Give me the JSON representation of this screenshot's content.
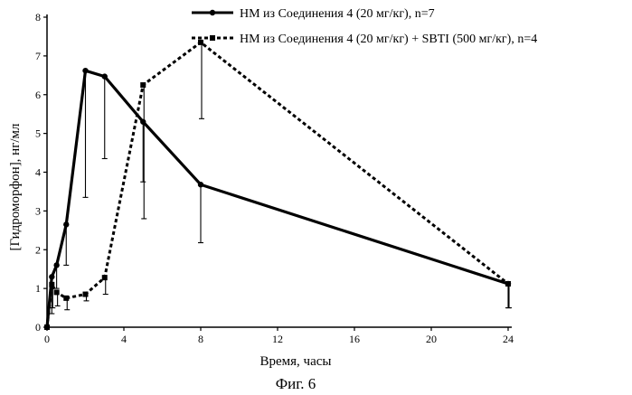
{
  "figure_caption": "Фиг. 6",
  "chart_data": {
    "type": "line",
    "title": "",
    "xlabel": "Время, часы",
    "ylabel": "[Гидроморфон], нг/мл",
    "xlim": [
      0,
      24
    ],
    "ylim": [
      0,
      8
    ],
    "xticks": [
      "0",
      "4",
      "8",
      "12",
      "16",
      "20",
      "24"
    ],
    "yticks": [
      "0",
      "1",
      "2",
      "3",
      "4",
      "5",
      "6",
      "7",
      "8"
    ],
    "grid": false,
    "legend_position": "top-right",
    "series": [
      {
        "name": "HM из Соединения 4 (20 мг/кг), n=7",
        "line_style": "solid",
        "marker": "circle",
        "color": "#000000",
        "x": [
          0,
          0.25,
          0.5,
          1,
          2,
          3,
          5,
          8,
          24
        ],
        "y": [
          0,
          1.3,
          1.6,
          2.65,
          6.62,
          6.47,
          5.3,
          3.68,
          1.12
        ],
        "error_low": [
          0,
          0.35,
          1.0,
          1.6,
          3.35,
          4.35,
          3.75,
          2.18,
          0.5
        ]
      },
      {
        "name": "HM из Соединения 4 (20 мг/кг) + SBTI (500 мг/кг), n=4",
        "line_style": "dashed",
        "marker": "square",
        "color": "#000000",
        "x": [
          0,
          0.25,
          0.5,
          1,
          2,
          3,
          5,
          8,
          24
        ],
        "y": [
          0,
          1.1,
          0.9,
          0.75,
          0.85,
          1.28,
          6.25,
          7.35,
          1.12
        ],
        "error_low": [
          0,
          0.5,
          0.55,
          0.45,
          0.68,
          0.85,
          2.8,
          5.38,
          0.5
        ]
      }
    ]
  }
}
